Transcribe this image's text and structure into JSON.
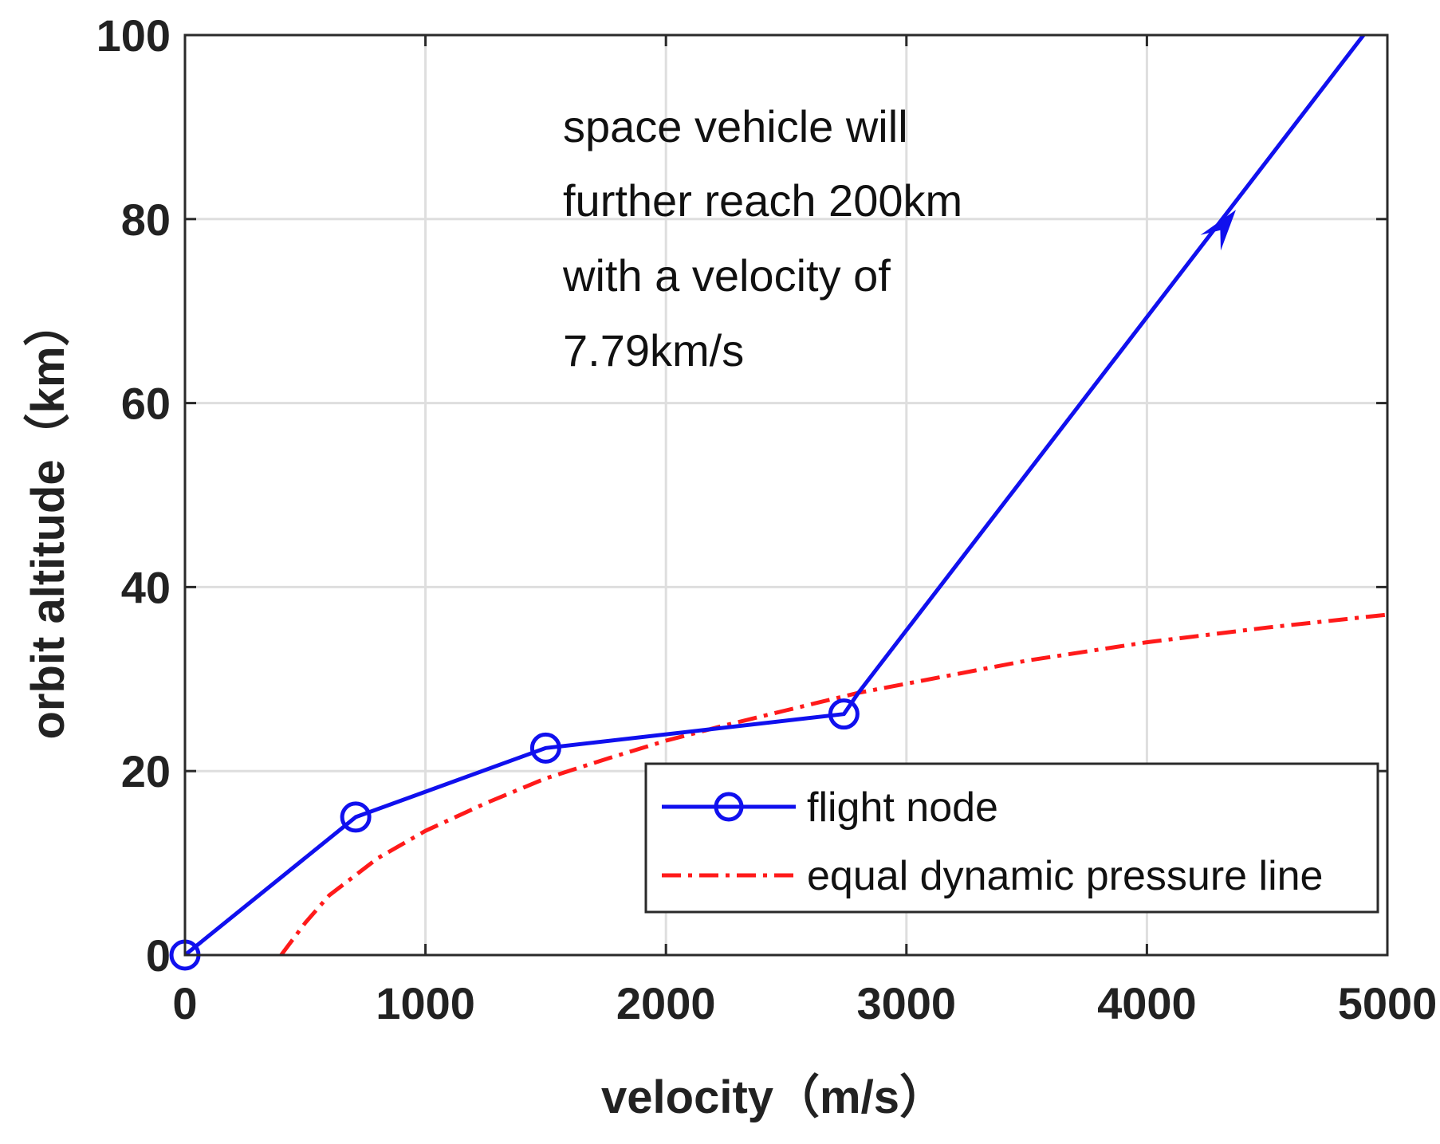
{
  "chart_data": {
    "type": "line",
    "title": "",
    "xlabel": "velocity（m/s）",
    "ylabel": "orbit altitude（km）",
    "xlim": [
      0,
      5000
    ],
    "ylim": [
      0,
      100
    ],
    "x_ticks": [
      0,
      1000,
      2000,
      3000,
      4000,
      5000
    ],
    "y_ticks": [
      0,
      20,
      40,
      60,
      80,
      100
    ],
    "x_tick_labels": [
      "0",
      "1000",
      "2000",
      "3000",
      "4000",
      "5000"
    ],
    "y_tick_labels": [
      "0",
      "20",
      "40",
      "60",
      "80",
      "100"
    ],
    "grid": true,
    "legend_position": "lower-right",
    "series": [
      {
        "name": "flight node",
        "color": "#1010ee",
        "style": "solid",
        "marker": "circle",
        "points": [
          {
            "x": 0,
            "y": 0,
            "marker": true
          },
          {
            "x": 710,
            "y": 15,
            "marker": true
          },
          {
            "x": 1500,
            "y": 22.5,
            "marker": true
          },
          {
            "x": 2740,
            "y": 26.2,
            "marker": true
          },
          {
            "x": 2800,
            "y": 28.5,
            "marker": false
          },
          {
            "x": 4930,
            "y": 101,
            "marker": false
          }
        ],
        "arrow": {
          "x": 4370,
          "y": 81
        }
      },
      {
        "name": "equal dynamic pressure line",
        "color": "#ff1a1a",
        "style": "dashdot",
        "points": [
          {
            "x": 400,
            "y": 0
          },
          {
            "x": 500,
            "y": 3.5
          },
          {
            "x": 600,
            "y": 6.5
          },
          {
            "x": 800,
            "y": 10.5
          },
          {
            "x": 1000,
            "y": 13.5
          },
          {
            "x": 1250,
            "y": 16.5
          },
          {
            "x": 1500,
            "y": 19.2
          },
          {
            "x": 1750,
            "y": 21.3
          },
          {
            "x": 2000,
            "y": 23.3
          },
          {
            "x": 2250,
            "y": 25
          },
          {
            "x": 2500,
            "y": 26.6
          },
          {
            "x": 2800,
            "y": 28.5
          },
          {
            "x": 3000,
            "y": 29.5
          },
          {
            "x": 3500,
            "y": 32
          },
          {
            "x": 4000,
            "y": 34
          },
          {
            "x": 4500,
            "y": 35.6
          },
          {
            "x": 5000,
            "y": 37
          }
        ]
      }
    ],
    "annotation": {
      "lines": [
        "space vehicle will",
        "further reach 200km",
        "with a velocity of",
        "7.79km/s"
      ]
    },
    "legend": {
      "entries": [
        "flight node",
        "equal dynamic pressure line"
      ]
    }
  }
}
